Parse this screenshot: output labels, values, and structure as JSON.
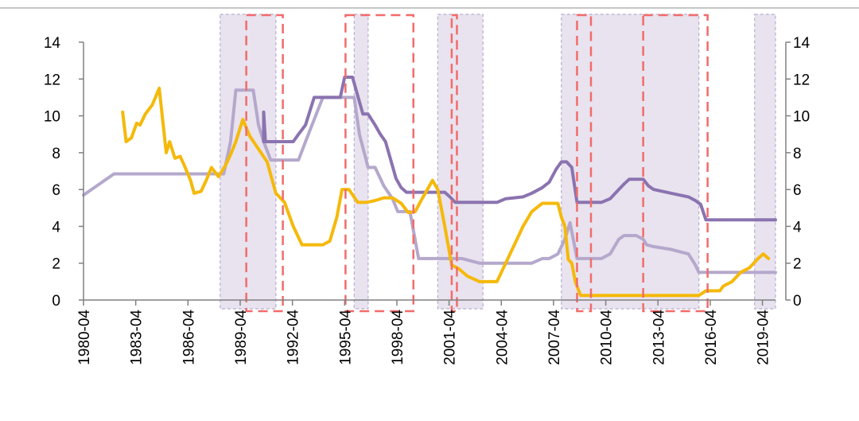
{
  "chart_data": {
    "type": "line",
    "title": "",
    "xlabel": "",
    "ylabel": "",
    "xlim": [
      1980.25,
      2020.0
    ],
    "ylim": [
      0,
      14
    ],
    "y_ticks": [
      0,
      2,
      4,
      6,
      8,
      10,
      12,
      14
    ],
    "y_tick_labels": [
      "0",
      "2",
      "4",
      "6",
      "8",
      "10",
      "12",
      "14"
    ],
    "y2_ticks": [
      0,
      2,
      4,
      6,
      8,
      10,
      12,
      14
    ],
    "y2_tick_labels": [
      "0",
      "2",
      "4",
      "6",
      "8",
      "10",
      "12",
      "14"
    ],
    "x_ticks": [
      1980.25,
      1983.25,
      1986.25,
      1989.25,
      1992.25,
      1995.25,
      1998.25,
      2001.25,
      2004.25,
      2007.25,
      2010.25,
      2013.25,
      2016.25,
      2019.25
    ],
    "x_tick_labels": [
      "1980-04",
      "1983-04",
      "1986-04",
      "1989-04",
      "1992-04",
      "1995-04",
      "1998-04",
      "2001-04",
      "2004-04",
      "2007-04",
      "2010-04",
      "2013-04",
      "2016-04",
      "2019-04"
    ],
    "grid": false,
    "legend": "none",
    "shaded_periods": [
      [
        1988.1,
        1991.3
      ],
      [
        1995.8,
        1996.6
      ],
      [
        2000.6,
        2003.2
      ],
      [
        2007.7,
        2015.6
      ],
      [
        2018.8,
        2020.0
      ]
    ],
    "dashed_periods": [
      [
        1989.6,
        1991.7
      ],
      [
        1995.3,
        1999.2
      ],
      [
        2001.4,
        2001.7
      ],
      [
        2008.6,
        2009.4
      ],
      [
        2012.4,
        2016.1
      ]
    ],
    "colors": {
      "dark_purple": "#8b73b0",
      "light_purple": "#b5a8cc",
      "yellow": "#f5b90a",
      "shade": "#e8e3ee",
      "shade_border": "#b9aed2",
      "dashed_box": "#f26b6b",
      "axis": "#808080"
    },
    "series": [
      {
        "color": "dark_purple",
        "x": [
          1990.6,
          1990.6,
          1990.7,
          1990.8,
          1991.7,
          1992.3,
          1992.6,
          1993.0,
          1993.5,
          1994.0,
          1994.5,
          1995.0,
          1995.25,
          1995.4,
          1995.7,
          1996.0,
          1996.3,
          1996.6,
          1997.0,
          1997.3,
          1997.6,
          1997.9,
          1998.2,
          1998.5,
          1998.8,
          1999.2,
          2000.0,
          2000.5,
          2001.0,
          2001.3,
          2001.6,
          2002.0,
          2003.0,
          2004.0,
          2004.5,
          2005.5,
          2006.0,
          2006.6,
          2007.0,
          2007.4,
          2007.7,
          2008.0,
          2008.3,
          2008.6,
          2009.0,
          2010.0,
          2010.5,
          2011.0,
          2011.3,
          2011.6,
          2012.0,
          2012.4,
          2012.7,
          2013.0,
          2014.0,
          2015.0,
          2015.4,
          2015.7,
          2016.0,
          2016.5,
          2018.0,
          2020.0
        ],
        "values": [
          8.6,
          10.2,
          8.6,
          8.6,
          8.6,
          8.6,
          9.0,
          9.5,
          11.0,
          11.0,
          11.0,
          11.0,
          12.1,
          12.1,
          12.1,
          11.1,
          10.1,
          10.1,
          9.5,
          9.0,
          8.6,
          7.6,
          6.6,
          6.1,
          5.85,
          5.85,
          5.85,
          5.85,
          5.85,
          5.6,
          5.3,
          5.3,
          5.3,
          5.3,
          5.5,
          5.6,
          5.8,
          6.1,
          6.4,
          7.1,
          7.5,
          7.5,
          7.2,
          5.3,
          5.3,
          5.3,
          5.5,
          6.0,
          6.3,
          6.56,
          6.56,
          6.56,
          6.2,
          6.0,
          5.8,
          5.6,
          5.4,
          5.2,
          4.35,
          4.35,
          4.35,
          4.35
        ]
      },
      {
        "color": "light_purple",
        "x": [
          1980.25,
          1982.0,
          1986.0,
          1988.3,
          1988.7,
          1989.0,
          1989.3,
          1989.6,
          1990.0,
          1990.3,
          1990.6,
          1991.0,
          1992.0,
          1992.6,
          1993.0,
          1993.5,
          1994.0,
          1995.0,
          1995.8,
          1996.1,
          1996.6,
          1997.0,
          1997.5,
          1998.0,
          1998.3,
          1998.7,
          1999.0,
          1999.5,
          2000.0,
          2001.0,
          2001.5,
          2002.0,
          2003.0,
          2004.0,
          2005.0,
          2006.0,
          2006.6,
          2007.0,
          2007.5,
          2007.9,
          2008.2,
          2008.6,
          2009.0,
          2010.0,
          2010.5,
          2011.0,
          2011.3,
          2012.0,
          2012.4,
          2012.6,
          2013.0,
          2014.0,
          2015.0,
          2015.4,
          2015.6,
          2016.2,
          2018.0,
          2020.0
        ],
        "values": [
          5.7,
          6.85,
          6.85,
          6.85,
          8.6,
          11.4,
          11.4,
          11.4,
          11.4,
          9.5,
          8.6,
          7.6,
          7.6,
          7.6,
          8.6,
          9.8,
          11.0,
          11.0,
          11.0,
          9.0,
          7.2,
          7.2,
          6.2,
          5.5,
          4.8,
          4.8,
          4.8,
          2.25,
          2.25,
          2.25,
          2.25,
          2.25,
          2.0,
          2.0,
          2.0,
          2.0,
          2.25,
          2.25,
          2.5,
          3.3,
          4.2,
          2.25,
          2.25,
          2.25,
          2.5,
          3.3,
          3.5,
          3.5,
          3.3,
          3.0,
          2.9,
          2.75,
          2.5,
          1.9,
          1.5,
          1.5,
          1.5,
          1.5
        ]
      },
      {
        "color": "yellow",
        "x": [
          1982.5,
          1982.7,
          1983.0,
          1983.3,
          1983.5,
          1983.8,
          1984.2,
          1984.6,
          1985.0,
          1985.2,
          1985.5,
          1985.8,
          1986.0,
          1986.4,
          1986.6,
          1987.0,
          1987.3,
          1987.6,
          1988.0,
          1988.4,
          1988.7,
          1989.0,
          1989.4,
          1989.8,
          1990.3,
          1990.8,
          1991.3,
          1991.8,
          1992.3,
          1992.8,
          1993.5,
          1994.0,
          1994.4,
          1994.8,
          1995.1,
          1995.5,
          1996.0,
          1996.5,
          1997.0,
          1997.5,
          1998.0,
          1998.5,
          1998.9,
          1999.3,
          1999.7,
          2000.0,
          2000.3,
          2000.6,
          2001.0,
          2001.4,
          2001.8,
          2002.3,
          2003.0,
          2003.6,
          2004.0,
          2004.5,
          2005.0,
          2005.5,
          2006.0,
          2006.6,
          2007.0,
          2007.5,
          2007.7,
          2007.9,
          2008.1,
          2008.3,
          2008.5,
          2008.8,
          2009.0,
          2010.0,
          2012.0,
          2014.0,
          2015.6,
          2016.0,
          2016.8,
          2017.0,
          2017.5,
          2018.0,
          2018.5,
          2019.0,
          2019.3,
          2019.6
        ],
        "values": [
          10.2,
          8.6,
          8.8,
          9.6,
          9.5,
          10.1,
          10.6,
          11.5,
          8.0,
          8.6,
          7.7,
          7.8,
          7.4,
          6.5,
          5.8,
          5.9,
          6.5,
          7.2,
          6.7,
          7.3,
          7.9,
          8.6,
          9.8,
          8.9,
          8.2,
          7.5,
          5.8,
          5.3,
          4.0,
          3.0,
          3.0,
          3.0,
          3.2,
          4.5,
          6.0,
          6.0,
          5.3,
          5.3,
          5.4,
          5.55,
          5.55,
          5.25,
          4.75,
          4.8,
          5.5,
          6.0,
          6.5,
          6.0,
          4.0,
          1.9,
          1.7,
          1.3,
          1.0,
          1.0,
          1.0,
          2.0,
          3.0,
          4.0,
          4.8,
          5.25,
          5.25,
          5.25,
          4.5,
          4.0,
          2.2,
          2.0,
          1.0,
          0.25,
          0.25,
          0.25,
          0.25,
          0.25,
          0.25,
          0.5,
          0.5,
          0.75,
          1.0,
          1.5,
          1.75,
          2.25,
          2.5,
          2.25
        ]
      }
    ]
  }
}
